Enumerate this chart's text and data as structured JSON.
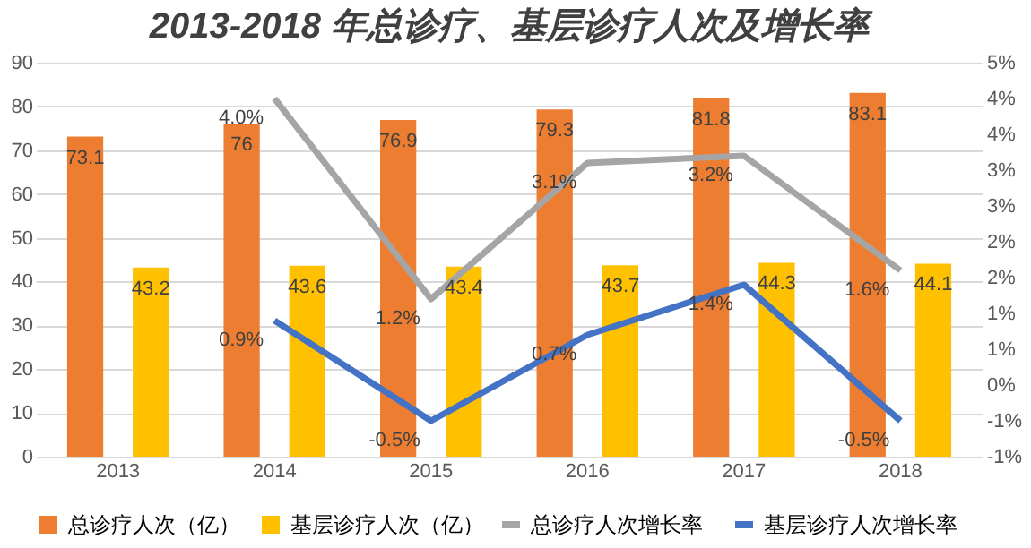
{
  "chart_data": {
    "type": "bar",
    "title": "2013-2018 年总诊疗、基层诊疗人次及增长率",
    "categories": [
      "2013",
      "2014",
      "2015",
      "2016",
      "2017",
      "2018"
    ],
    "series": [
      {
        "name": "总诊疗人次（亿）",
        "color": "#ed7d31",
        "values": [
          73.1,
          76,
          76.9,
          79.3,
          81.8,
          83.1
        ]
      },
      {
        "name": "基层诊疗人次（亿）",
        "color": "#ffc000",
        "values": [
          43.2,
          43.6,
          43.4,
          43.7,
          44.3,
          44.1
        ]
      },
      {
        "name": "总诊疗人次增长率",
        "type": "line",
        "axis": "y2",
        "color": "#a5a5a5",
        "values": [
          null,
          4.0,
          1.2,
          3.1,
          3.2,
          1.6
        ],
        "value_labels": [
          null,
          "4.0%",
          "1.2%",
          "3.1%",
          "3.2%",
          "1.6%"
        ]
      },
      {
        "name": "基层诊疗人次增长率",
        "type": "line",
        "axis": "y2",
        "color": "#4472c4",
        "values": [
          null,
          0.9,
          -0.5,
          0.7,
          1.4,
          -0.5
        ],
        "value_labels": [
          null,
          "0.9%",
          "-0.5%",
          "0.7%",
          "1.4%",
          "-0.5%"
        ]
      }
    ],
    "ylim": [
      0,
      90
    ],
    "yticks": [
      0,
      10,
      20,
      30,
      40,
      50,
      60,
      70,
      80,
      90
    ],
    "y2lim": [
      -1,
      4.5
    ],
    "y2ticks": [
      {
        "value": -1,
        "label": "-1%"
      },
      {
        "value": -0.5,
        "label": "-1%"
      },
      {
        "value": 0,
        "label": "0%"
      },
      {
        "value": 0.5,
        "label": "1%"
      },
      {
        "value": 1,
        "label": "1%"
      },
      {
        "value": 1.5,
        "label": "2%"
      },
      {
        "value": 2,
        "label": "2%"
      },
      {
        "value": 2.5,
        "label": "3%"
      },
      {
        "value": 3,
        "label": "3%"
      },
      {
        "value": 3.5,
        "label": "4%"
      },
      {
        "value": 4,
        "label": "4%"
      },
      {
        "value": 4.5,
        "label": "5%"
      }
    ],
    "data_labels": true,
    "grid": "y",
    "legend": "bottom",
    "marker": "none",
    "line_style": "solid"
  }
}
